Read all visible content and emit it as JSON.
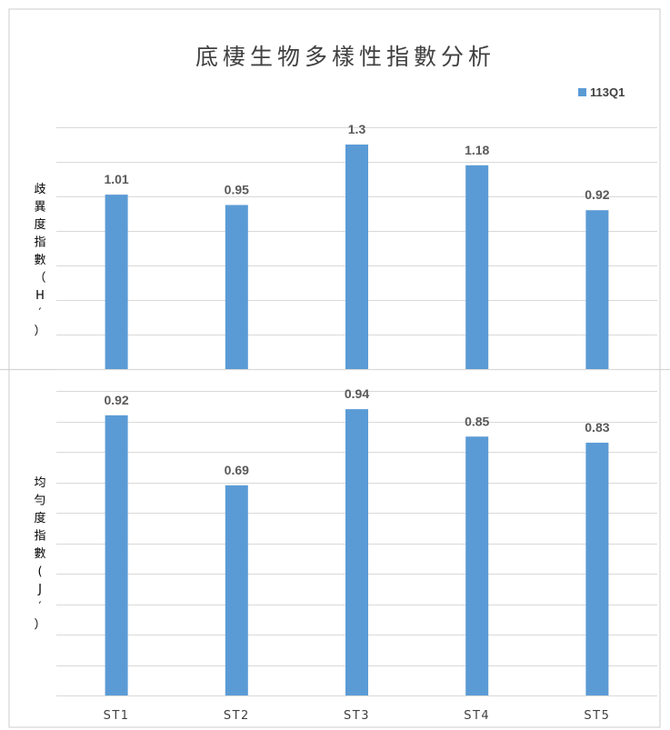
{
  "chart_data": {
    "title": "底棲生物多樣性指數分析",
    "legend": {
      "position": "top-right",
      "entries": [
        {
          "label": "113Q1",
          "color": "#5b9bd5"
        }
      ]
    },
    "categories": [
      "ST1",
      "ST2",
      "ST3",
      "ST4",
      "ST5"
    ],
    "panels": [
      {
        "type": "bar",
        "ylabel": "歧異度指數（H′）",
        "ylim": [
          0,
          1.4
        ],
        "grid": true,
        "series": [
          {
            "name": "113Q1",
            "color": "#5b9bd5",
            "values": [
              1.01,
              0.95,
              1.3,
              1.18,
              0.92
            ]
          }
        ],
        "value_labels": [
          "1.01",
          "0.95",
          "1.3",
          "1.18",
          "0.92"
        ]
      },
      {
        "type": "bar",
        "ylabel": "均勻度指數(J′）",
        "ylim": [
          0,
          1.0
        ],
        "grid": true,
        "series": [
          {
            "name": "113Q1",
            "color": "#5b9bd5",
            "values": [
              0.92,
              0.69,
              0.94,
              0.85,
              0.83
            ]
          }
        ],
        "value_labels": [
          "0.92",
          "0.69",
          "0.94",
          "0.85",
          "0.83"
        ]
      }
    ]
  }
}
